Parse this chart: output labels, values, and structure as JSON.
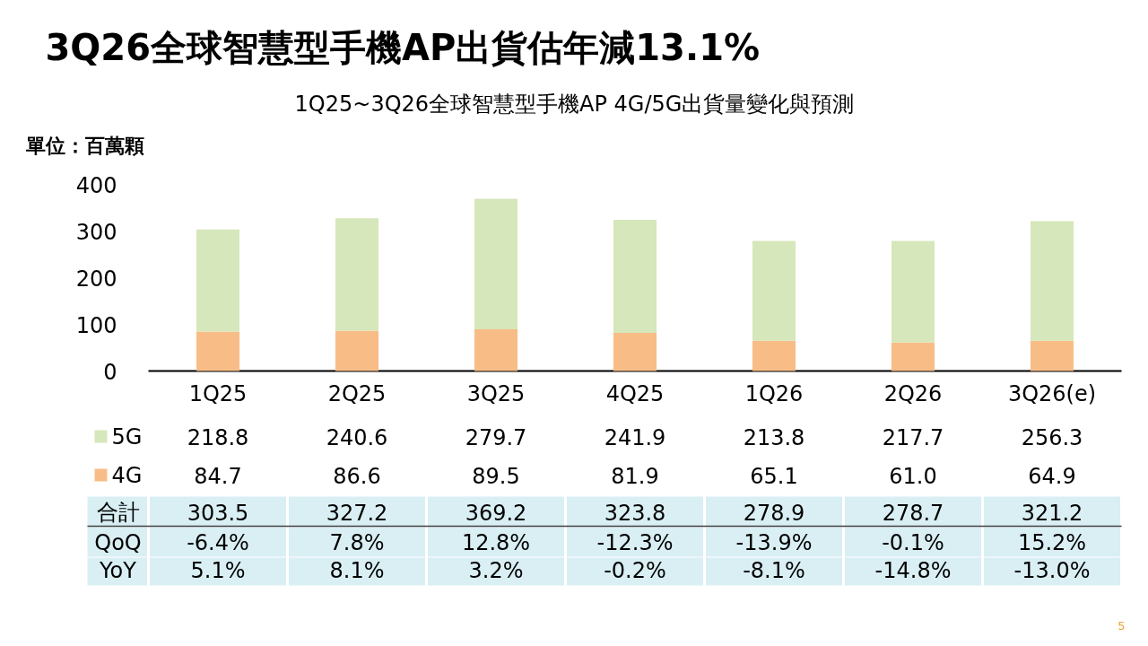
{
  "chart_data": {
    "type": "bar",
    "title": "3Q26全球智慧型手機AP出貨估年減13.1%",
    "subtitle": "1Q25~3Q26全球智慧型手機AP 4G/5G出貨量變化與預測",
    "categories": [
      "1Q25",
      "2Q25",
      "3Q25",
      "4Q25",
      "1Q26",
      "2Q26",
      "3Q26(e)"
    ],
    "stacked": true,
    "series": [
      {
        "name": "4G",
        "color": "#f8bd87",
        "values": [
          84.7,
          86.6,
          89.5,
          81.9,
          65.1,
          61.0,
          64.9
        ],
        "value_labels": [
          "84.7",
          "86.6",
          "89.5",
          "81.9",
          "65.1",
          "61.0",
          "64.9"
        ]
      },
      {
        "name": "5G",
        "color": "#d6e7bb",
        "values": [
          218.8,
          240.6,
          279.7,
          241.9,
          213.8,
          217.7,
          256.3
        ],
        "value_labels": [
          "218.8",
          "240.6",
          "279.7",
          "241.9",
          "213.8",
          "217.7",
          "256.3"
        ]
      }
    ],
    "ylim": [
      0,
      400
    ],
    "yticks": [
      0,
      100,
      200,
      300,
      400
    ],
    "grid": false,
    "legend": "bottom left",
    "annotations": [
      "單位：百萬顆",
      "合計",
      "303.5",
      "327.2",
      "369.2",
      "323.8",
      "278.9",
      "278.7",
      "321.2",
      "QoQ",
      "-6.4%",
      "7.8%",
      "12.8%",
      "-12.3%",
      "-13.9%",
      "-0.1%",
      "15.2%",
      "YoY",
      "5.1%",
      "8.1%",
      "3.2%",
      "-0.2%",
      "-8.1%",
      "-14.8%",
      "-13.0%",
      "5"
    ]
  }
}
